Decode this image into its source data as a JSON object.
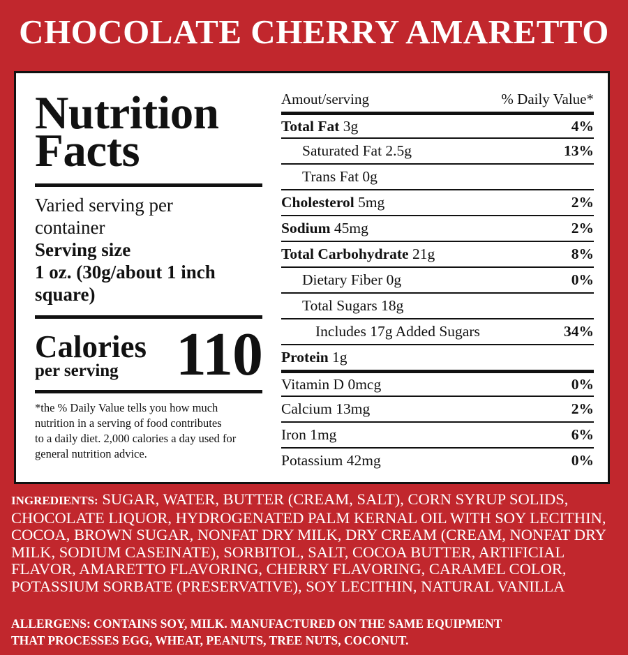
{
  "title": "CHOCOLATE CHERRY AMARETTO",
  "left": {
    "nf_line1": "Nutrition",
    "nf_line2": "Facts",
    "servings_line1": "Varied serving per",
    "servings_line2": "container",
    "serving_size_label": "Serving size",
    "serving_size_value_line1": "1 oz. (30g/about 1 inch",
    "serving_size_value_line2": "square)",
    "calories_label": "Calories",
    "per_serving": "per serving",
    "calories_value": "110",
    "footnote_line1": "*the % Daily Value tells you how much",
    "footnote_line2": "nutrition in a serving of food contributes",
    "footnote_line3": "to a daily diet. 2,000 calories a day used for",
    "footnote_line4": "general nutrition advice."
  },
  "right": {
    "header_left": "Amout/serving",
    "header_right": "% Daily Value*",
    "rows": [
      {
        "bold": "Total Fat",
        "text": " 3g",
        "pct": "4%"
      },
      {
        "bold": "",
        "text": "Saturated Fat 2.5g",
        "pct": "13%"
      },
      {
        "bold": "",
        "text": "Trans Fat 0g",
        "pct": ""
      },
      {
        "bold": "Cholesterol",
        "text": " 5mg",
        "pct": "2%"
      },
      {
        "bold": "Sodium",
        "text": " 45mg",
        "pct": "2%"
      },
      {
        "bold": "Total Carbohydrate",
        "text": " 21g",
        "pct": "8%"
      },
      {
        "bold": "",
        "text": "Dietary Fiber 0g",
        "pct": "0%"
      },
      {
        "bold": "",
        "text": "Total Sugars 18g",
        "pct": ""
      },
      {
        "bold": "",
        "text": "Includes 17g Added Sugars",
        "pct": "34%"
      },
      {
        "bold": "Protein",
        "text": " 1g",
        "pct": ""
      },
      {
        "bold": "",
        "text": "Vitamin D 0mcg",
        "pct": "0%"
      },
      {
        "bold": "",
        "text": "Calcium 13mg",
        "pct": "2%"
      },
      {
        "bold": "",
        "text": "Iron 1mg",
        "pct": "6%"
      },
      {
        "bold": "",
        "text": "Potassium 42mg",
        "pct": "0%"
      }
    ]
  },
  "ingredients_label": "INGREDIENTS:",
  "ingredients_text": "SUGAR, WATER, BUTTER (CREAM, SALT), CORN SYRUP SOLIDS, CHOCOLATE LIQUOR, HYDROGENATED PALM KERNAL OIL WITH SOY LECITHIN, COCOA, BROWN SUGAR, NONFAT DRY MILK, DRY CREAM (CREAM, NONFAT DRY MILK, SODIUM CASEINATE), SORBITOL, SALT, COCOA BUTTER, ARTIFICIAL FLAVOR, AMARETTO FLAVORING, CHERRY FLAVORING, CARAMEL COLOR, POTASSIUM SORBATE (PRESERVATIVE), SOY LECITHIN, NATURAL VANILLA",
  "allergens_line1": "ALLERGENS: CONTAINS SOY, MILK.  MANUFACTURED ON THE SAME EQUIPMENT",
  "allergens_line2": "THAT PROCESSES EGG, WHEAT, PEANUTS, TREE NUTS, COCONUT.",
  "colors": {
    "background": "#c1272d",
    "panel": "#ffffff",
    "text_on_bg": "#ffffff"
  }
}
